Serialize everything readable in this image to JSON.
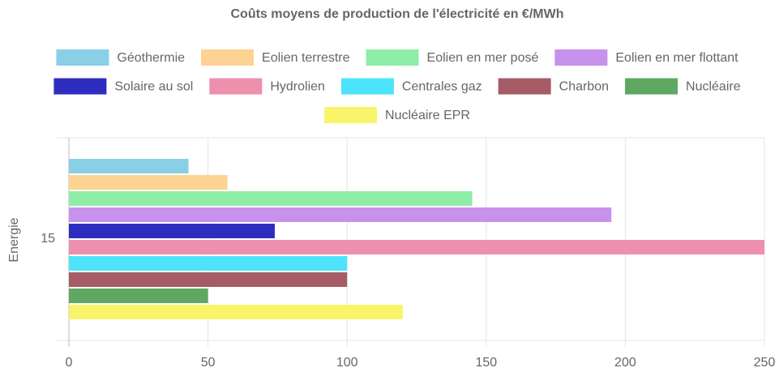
{
  "chart_data": {
    "type": "hbar",
    "title": "Coûts moyens de production de l'électricité en €/MWh",
    "y_label": "Energie",
    "categories": [
      "15"
    ],
    "series": [
      {
        "name": "Géothermie",
        "color": "#89cfe6",
        "values": [
          43
        ]
      },
      {
        "name": "Eolien terrestre",
        "color": "#fcd392",
        "values": [
          57
        ]
      },
      {
        "name": "Eolien en mer posé",
        "color": "#8eeda6",
        "values": [
          145
        ]
      },
      {
        "name": "Eolien en mer flottant",
        "color": "#c891ec",
        "values": [
          195
        ]
      },
      {
        "name": "Solaire au sol",
        "color": "#2f2dbf",
        "values": [
          74
        ]
      },
      {
        "name": "Hydrolien",
        "color": "#ee8fae",
        "values": [
          250
        ]
      },
      {
        "name": "Centrales gaz",
        "color": "#4de3fb",
        "values": [
          100
        ]
      },
      {
        "name": "Charbon",
        "color": "#a65b66",
        "values": [
          100
        ]
      },
      {
        "name": "Nucléaire",
        "color": "#5ea862",
        "values": [
          50
        ]
      },
      {
        "name": "Nucléaire EPR",
        "color": "#f8f56a",
        "values": [
          120
        ]
      }
    ],
    "xlim": [
      0,
      250
    ],
    "xticks": [
      0,
      50,
      100,
      150,
      200,
      250
    ],
    "grid": true,
    "legend": "top"
  }
}
